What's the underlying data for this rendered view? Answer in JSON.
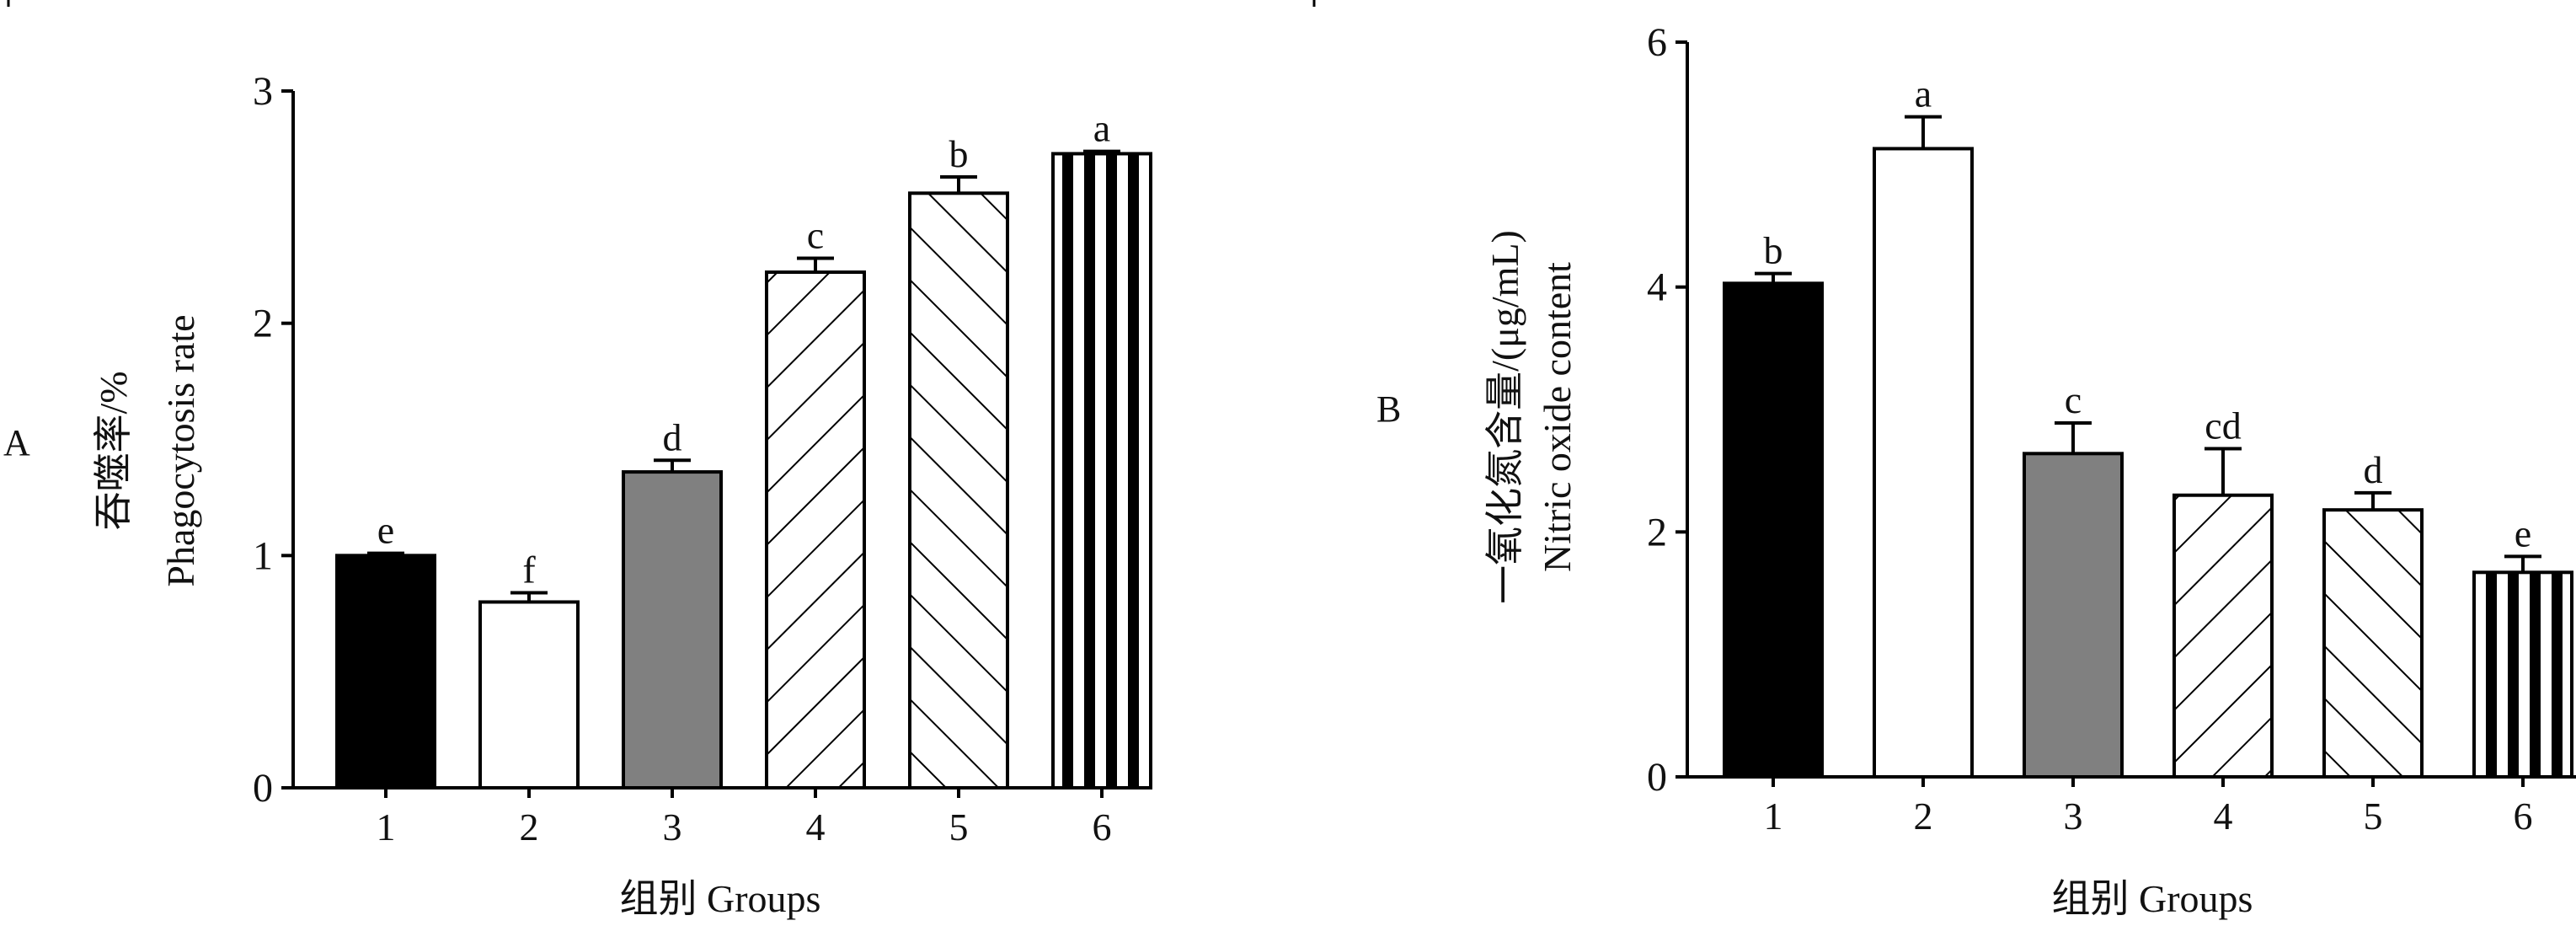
{
  "chart_data": [
    {
      "panel_label": "A",
      "type": "bar",
      "categories": [
        "1",
        "2",
        "3",
        "4",
        "5",
        "6"
      ],
      "values": [
        1.0,
        0.8,
        1.36,
        2.22,
        2.56,
        2.73
      ],
      "errors": [
        0.01,
        0.04,
        0.05,
        0.06,
        0.07,
        0.01
      ],
      "letters": [
        "e",
        "f",
        "d",
        "c",
        "b",
        "a"
      ],
      "fills": [
        "solid-black",
        "white",
        "solid-gray",
        "diagonal-up",
        "diagonal-down",
        "vertical-stripes"
      ],
      "ylabel_cn": "吞噬率/%",
      "ylabel_en": "Phagocytosis rate",
      "xlabel": "组别  Groups",
      "ylim": [
        0,
        3
      ],
      "yticks": [
        "0",
        "1",
        "2",
        "3"
      ],
      "grid": false
    },
    {
      "panel_label": "B",
      "type": "bar",
      "categories": [
        "1",
        "2",
        "3",
        "4",
        "5",
        "6"
      ],
      "values": [
        4.03,
        5.13,
        2.64,
        2.3,
        2.18,
        1.67
      ],
      "errors": [
        0.08,
        0.26,
        0.25,
        0.38,
        0.14,
        0.13
      ],
      "letters": [
        "b",
        "a",
        "c",
        "cd",
        "d",
        "e"
      ],
      "fills": [
        "solid-black",
        "white",
        "solid-gray",
        "diagonal-up",
        "diagonal-down",
        "vertical-stripes"
      ],
      "ylabel_cn": "一氧化氮含量/(μg/mL)",
      "ylabel_en": "Nitric oxide content",
      "xlabel": "组别  Groups",
      "ylim": [
        0,
        6
      ],
      "yticks": [
        "0",
        "2",
        "4",
        "6"
      ],
      "grid": false
    }
  ],
  "colors": {
    "black": "#000000",
    "gray": "#808080",
    "white": "#ffffff"
  }
}
